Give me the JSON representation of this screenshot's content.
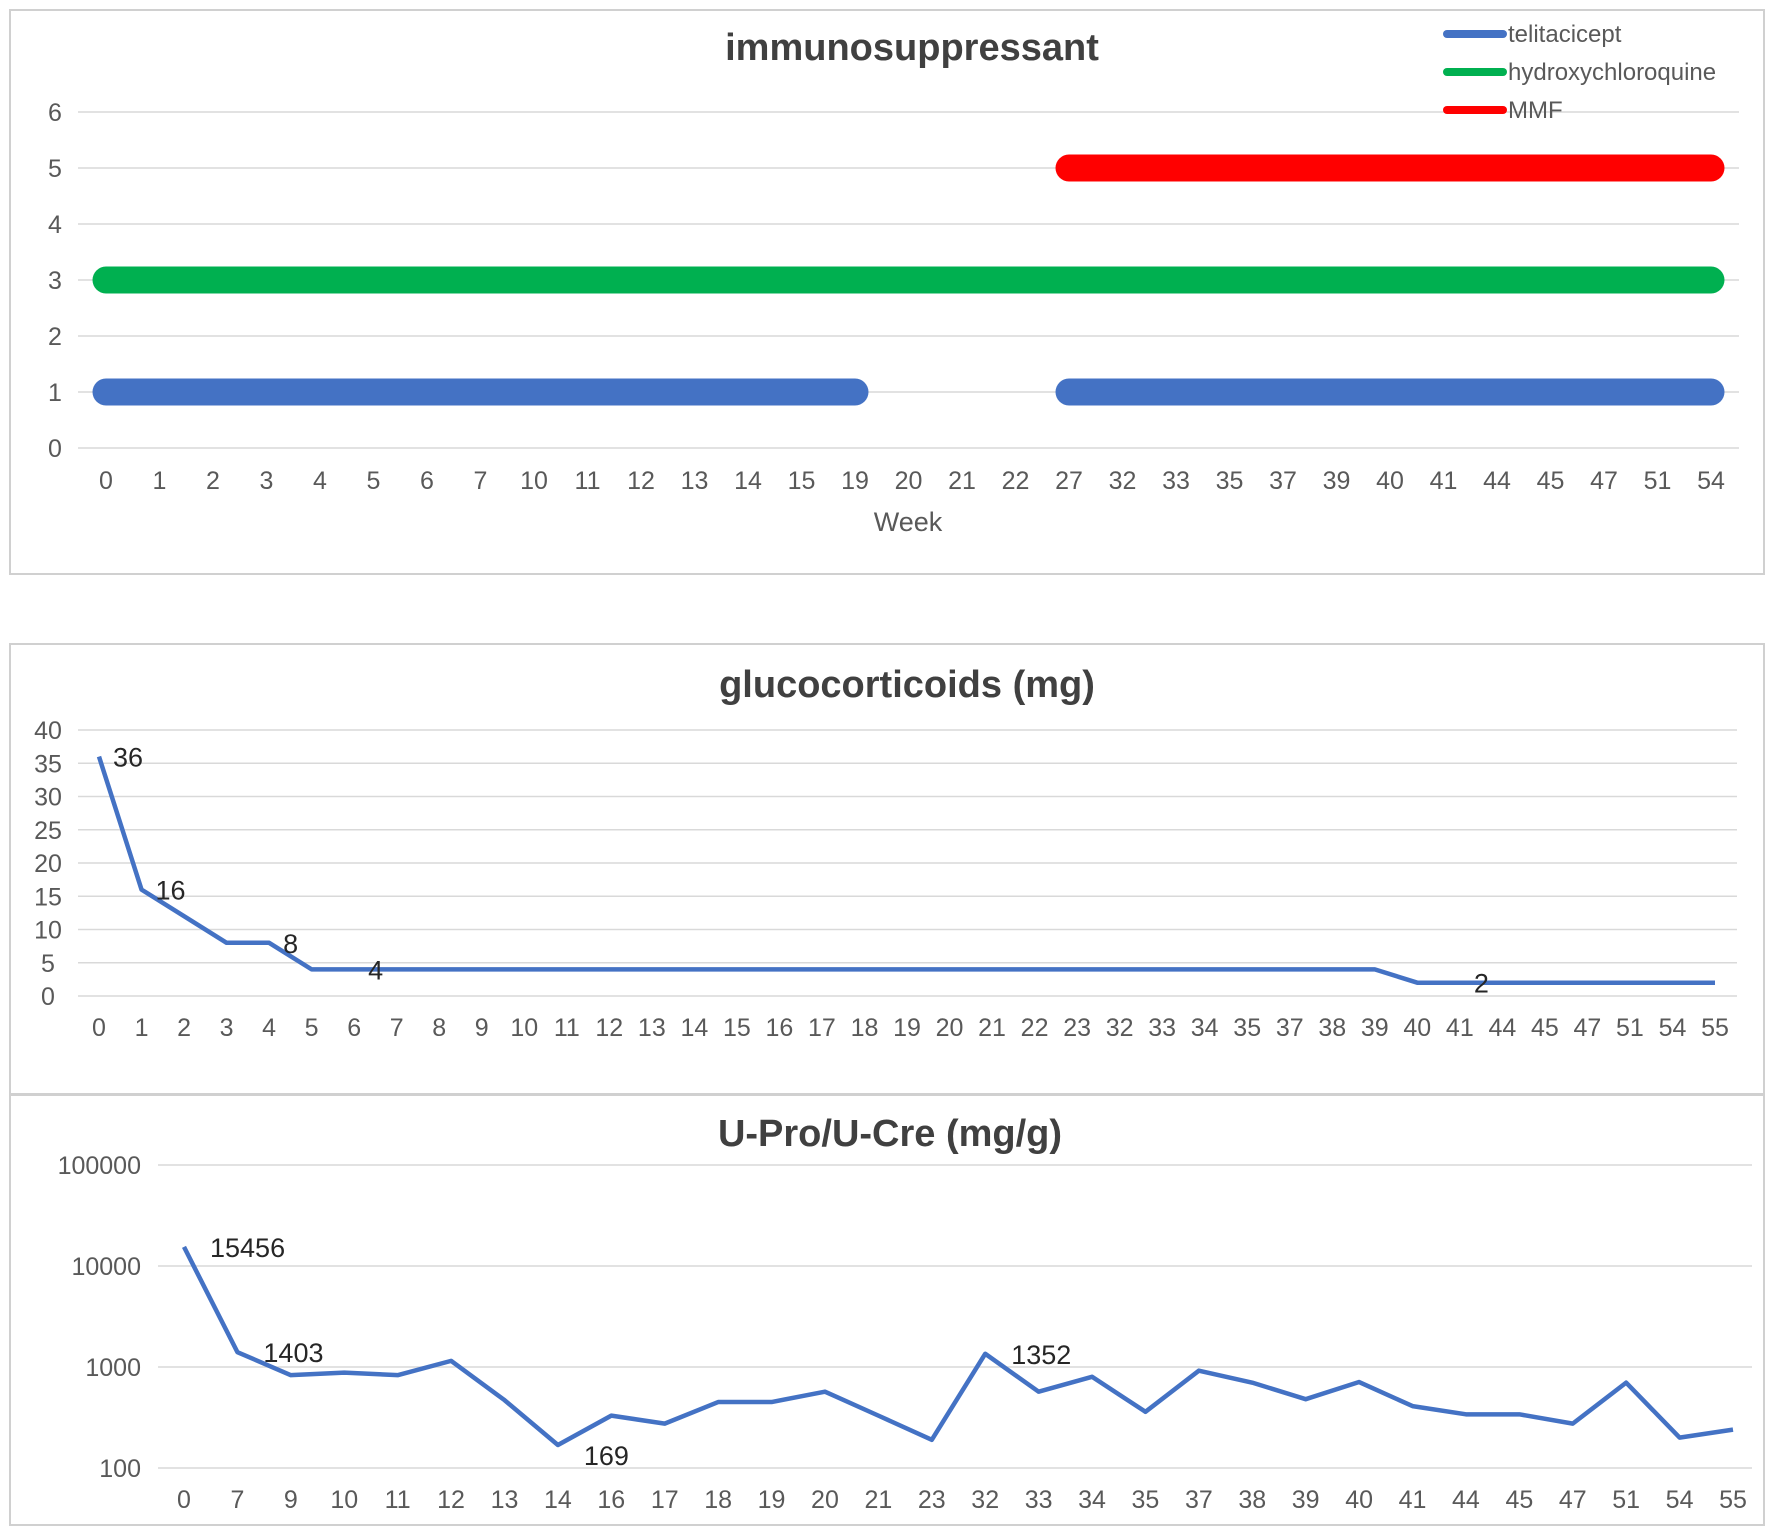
{
  "chart_data": [
    {
      "type": "line",
      "title": "immunosuppressant",
      "xlabel": "Week",
      "ylabel": "",
      "categories": [
        "0",
        "1",
        "2",
        "3",
        "4",
        "5",
        "6",
        "7",
        "10",
        "11",
        "12",
        "13",
        "14",
        "15",
        "19",
        "20",
        "21",
        "22",
        "27",
        "32",
        "33",
        "35",
        "37",
        "39",
        "40",
        "41",
        "44",
        "45",
        "47",
        "51",
        "54"
      ],
      "yticks": [
        "0",
        "1",
        "2",
        "3",
        "4",
        "5",
        "6"
      ],
      "ylim": [
        0,
        6
      ],
      "grid": true,
      "legend_position": "top-right",
      "series": [
        {
          "name": "telitacicept",
          "color": "#4472C4",
          "segments": [
            {
              "y": 1,
              "from": "0",
              "to": "19"
            },
            {
              "y": 1,
              "from": "27",
              "to": "54"
            }
          ]
        },
        {
          "name": "hydroxychloroquine",
          "color": "#00B050",
          "segments": [
            {
              "y": 3,
              "from": "0",
              "to": "54"
            }
          ]
        },
        {
          "name": "MMF",
          "color": "#FF0000",
          "segments": [
            {
              "y": 5,
              "from": "27",
              "to": "54"
            }
          ]
        }
      ]
    },
    {
      "type": "line",
      "title": "glucocorticoids (mg)",
      "xlabel": "",
      "ylabel": "",
      "categories": [
        "0",
        "1",
        "2",
        "3",
        "4",
        "5",
        "6",
        "7",
        "8",
        "9",
        "10",
        "11",
        "12",
        "13",
        "14",
        "15",
        "16",
        "17",
        "18",
        "19",
        "20",
        "21",
        "22",
        "23",
        "32",
        "33",
        "34",
        "35",
        "37",
        "38",
        "39",
        "40",
        "41",
        "44",
        "45",
        "47",
        "51",
        "54",
        "55"
      ],
      "values": [
        36,
        16,
        12,
        8,
        8,
        4,
        4,
        4,
        4,
        4,
        4,
        4,
        4,
        4,
        4,
        4,
        4,
        4,
        4,
        4,
        4,
        4,
        4,
        4,
        4,
        4,
        4,
        4,
        4,
        4,
        4,
        2,
        2,
        2,
        2,
        2,
        2,
        2,
        2
      ],
      "yticks": [
        "0",
        "5",
        "10",
        "15",
        "20",
        "25",
        "30",
        "35",
        "40"
      ],
      "ylim": [
        0,
        40
      ],
      "grid": true,
      "color": "#4472C4",
      "data_labels": [
        {
          "index": 0,
          "text": "36"
        },
        {
          "index": 1,
          "text": "16"
        },
        {
          "index": 4,
          "text": "8"
        },
        {
          "index": 6,
          "text": "4"
        },
        {
          "index": 32,
          "text": "2"
        }
      ]
    },
    {
      "type": "line",
      "title": "U-Pro/U-Cre (mg/g)",
      "xlabel": "",
      "ylabel": "",
      "yscale": "log",
      "categories": [
        "0",
        "7",
        "9",
        "10",
        "11",
        "12",
        "13",
        "14",
        "16",
        "17",
        "18",
        "19",
        "20",
        "21",
        "23",
        "32",
        "33",
        "34",
        "35",
        "37",
        "38",
        "39",
        "40",
        "41",
        "44",
        "45",
        "47",
        "51",
        "54",
        "55"
      ],
      "values": [
        15456,
        1403,
        830,
        880,
        830,
        1150,
        470,
        169,
        330,
        275,
        450,
        450,
        570,
        330,
        190,
        1352,
        570,
        800,
        360,
        920,
        700,
        480,
        710,
        410,
        340,
        340,
        275,
        700,
        200,
        240
      ],
      "yticks": [
        "100",
        "1000",
        "10000",
        "100000"
      ],
      "ylim": [
        100,
        100000
      ],
      "grid": true,
      "color": "#4472C4",
      "data_labels": [
        {
          "index": 0,
          "text": "15456"
        },
        {
          "index": 1,
          "text": "1403"
        },
        {
          "index": 7,
          "text": "169"
        },
        {
          "index": 15,
          "text": "1352"
        }
      ]
    }
  ]
}
